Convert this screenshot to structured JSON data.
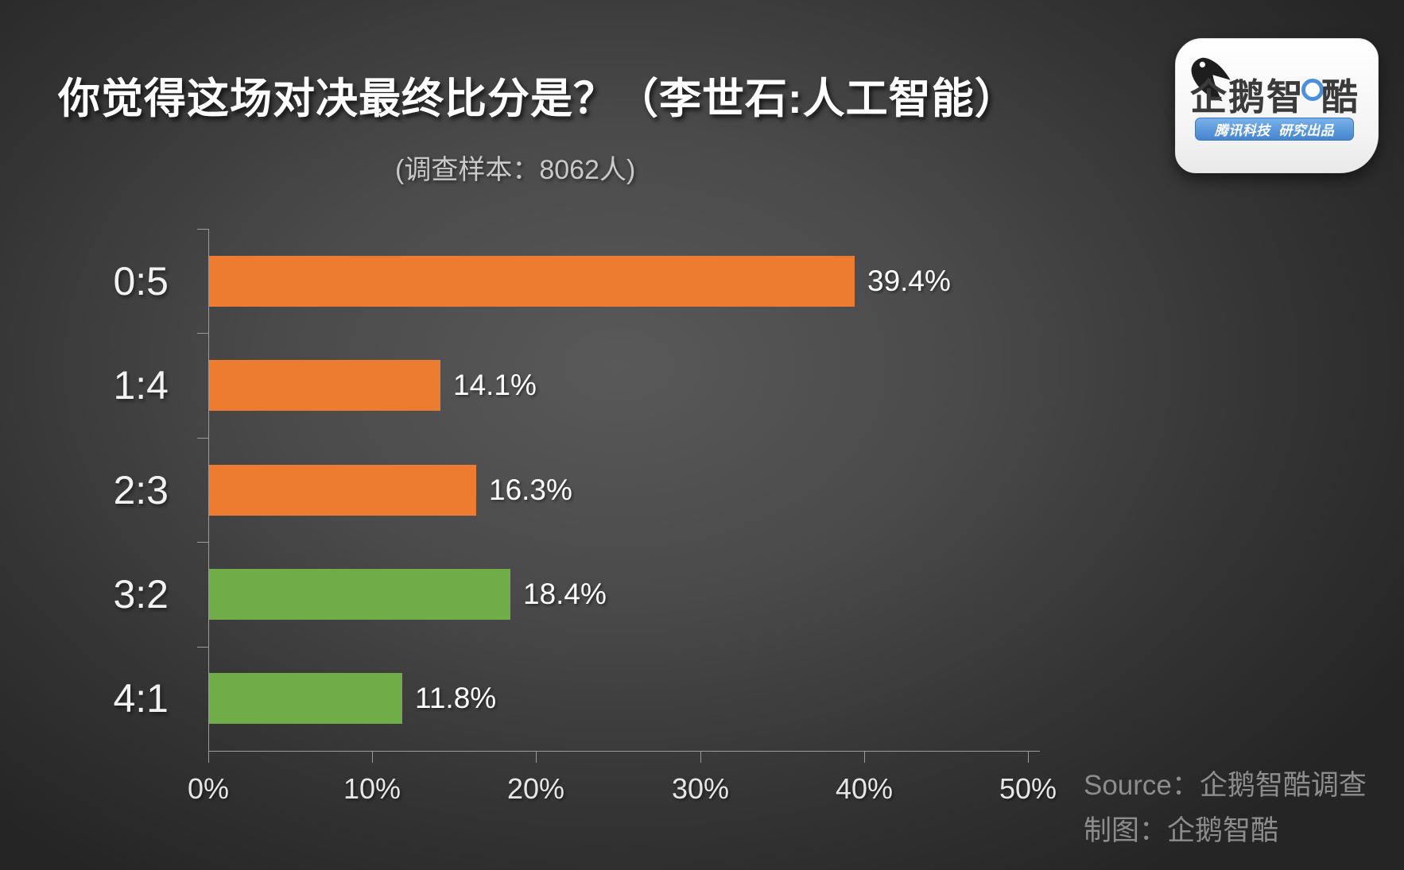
{
  "title": "你觉得这场对决最终比分是？（李世石:人工智能）",
  "subtitle": "(调查样本：8062人)",
  "logo": {
    "brand": "企鹅智酷",
    "brand_prefix": "企鹅智",
    "brand_suffix": "酷",
    "badge": "腾讯科技  研究出品"
  },
  "footer": {
    "source": "Source：企鹅智酷调查",
    "credit": "制图：企鹅智酷"
  },
  "colors": {
    "orange": "#ED7C31",
    "green": "#6FAD47",
    "axis": "#9c9c9c",
    "badge_blue": "#4a90dc",
    "background_center": "#575757",
    "background_edge": "#262626"
  },
  "chart_data": {
    "type": "bar",
    "orientation": "horizontal",
    "title": "你觉得这场对决最终比分是？（李世石:人工智能）",
    "subtitle": "(调查样本：8062人)",
    "sample_size": "8062人",
    "categories": [
      "0:5",
      "1:4",
      "2:3",
      "3:2",
      "4:1"
    ],
    "values": [
      39.4,
      14.1,
      16.3,
      18.4,
      11.8
    ],
    "value_labels": [
      "39.4%",
      "14.1%",
      "16.3%",
      "18.4%",
      "11.8%"
    ],
    "bar_colors": [
      "#ED7C31",
      "#ED7C31",
      "#ED7C31",
      "#6FAD47",
      "#6FAD47"
    ],
    "x_ticks": [
      "0%",
      "10%",
      "20%",
      "30%",
      "40%",
      "50%"
    ],
    "xlabel": "",
    "ylabel": "",
    "xlim": [
      0,
      50
    ],
    "grid": false,
    "legend": false
  }
}
